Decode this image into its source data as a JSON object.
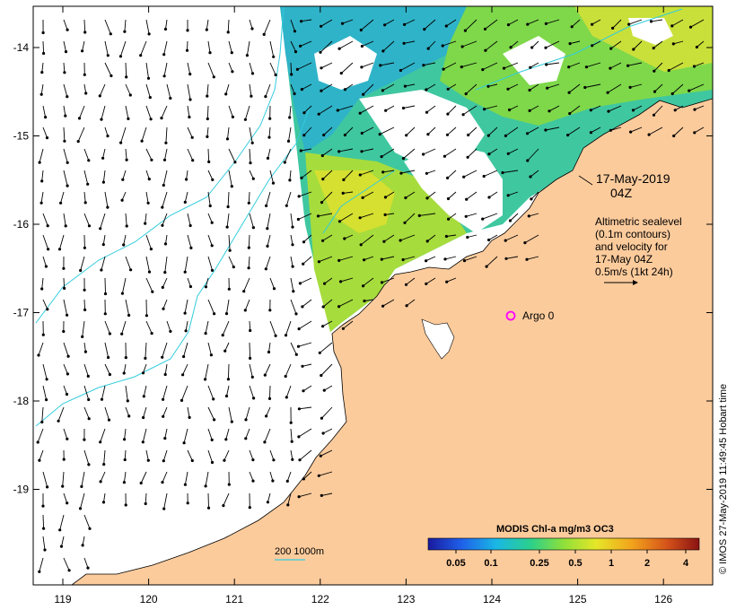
{
  "map": {
    "lon_ticks": [
      "119",
      "120",
      "121",
      "122",
      "123",
      "124",
      "125",
      "126"
    ],
    "lat_ticks": [
      "-14",
      "-15",
      "-16",
      "-17",
      "-18",
      "-19"
    ],
    "date_label_line1": "17-May-2019",
    "date_label_line2": "04Z",
    "legend_lines": [
      "Altimetric sealevel",
      "(0.1m contours)",
      "and velocity for",
      "17-May 04Z",
      "0.5m/s (1kt 24h)"
    ],
    "argo_label": "Argo 0",
    "depth_label": "200  1000m",
    "credit": "© IMOS 27-May-2019 11:49:45 Hobart time",
    "colorbar_title": "MODIS Chl-a mg/m3 OC3",
    "colorbar_ticks": [
      "0.05",
      "0.1",
      "0.25",
      "0.5",
      "1",
      "2",
      "4"
    ],
    "colors": {
      "land": "#fccb9c",
      "contour": "#33ccdd",
      "argo": "#ff00ff",
      "colorbar_stops": [
        "#1a1a9e",
        "#1f5ee8",
        "#19b7e6",
        "#2cd08a",
        "#8fe03a",
        "#e6e628",
        "#f2a41c",
        "#d6541a",
        "#8a1212"
      ]
    }
  }
}
